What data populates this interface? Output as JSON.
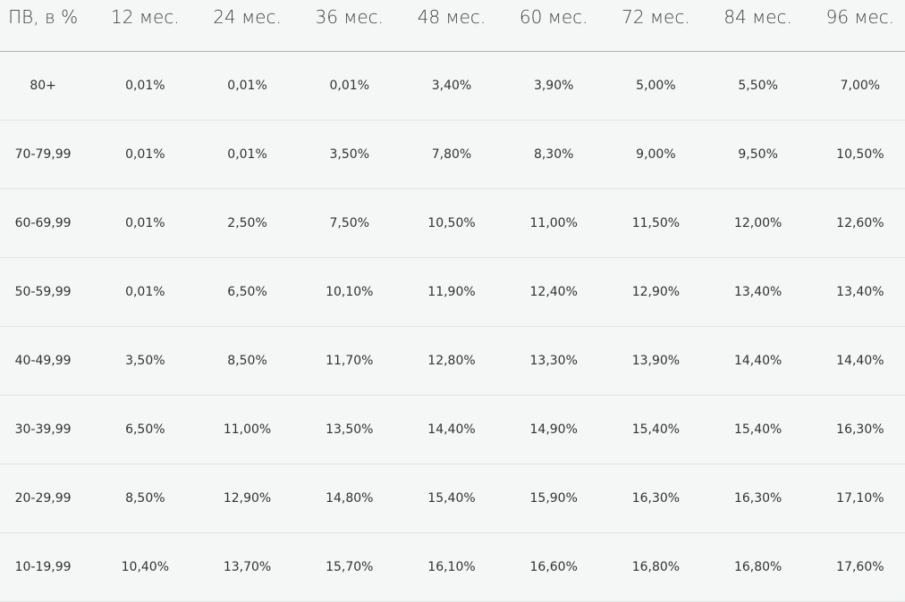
{
  "table": {
    "headers": [
      "ПВ, в %",
      "12 мес.",
      "24 мес.",
      "36 мес.",
      "48 мес.",
      "60 мес.",
      "72 мес.",
      "84 мес.",
      "96 мес."
    ],
    "rows": [
      [
        "80+",
        "0,01%",
        "0,01%",
        "0,01%",
        "3,40%",
        "3,90%",
        "5,00%",
        "5,50%",
        "7,00%"
      ],
      [
        "70-79,99",
        "0,01%",
        "0,01%",
        "3,50%",
        "7,80%",
        "8,30%",
        "9,00%",
        "9,50%",
        "10,50%"
      ],
      [
        "60-69,99",
        "0,01%",
        "2,50%",
        "7,50%",
        "10,50%",
        "11,00%",
        "11,50%",
        "12,00%",
        "12,60%"
      ],
      [
        "50-59,99",
        "0,01%",
        "6,50%",
        "10,10%",
        "11,90%",
        "12,40%",
        "12,90%",
        "13,40%",
        "13,40%"
      ],
      [
        "40-49,99",
        "3,50%",
        "8,50%",
        "11,70%",
        "12,80%",
        "13,30%",
        "13,90%",
        "14,40%",
        "14,40%"
      ],
      [
        "30-39,99",
        "6,50%",
        "11,00%",
        "13,50%",
        "14,40%",
        "14,90%",
        "15,40%",
        "15,40%",
        "16,30%"
      ],
      [
        "20-29,99",
        "8,50%",
        "12,90%",
        "14,80%",
        "15,40%",
        "15,90%",
        "16,30%",
        "16,30%",
        "17,10%"
      ],
      [
        "10-19,99",
        "10,40%",
        "13,70%",
        "15,70%",
        "16,10%",
        "16,60%",
        "16,80%",
        "16,80%",
        "17,60%"
      ]
    ]
  }
}
